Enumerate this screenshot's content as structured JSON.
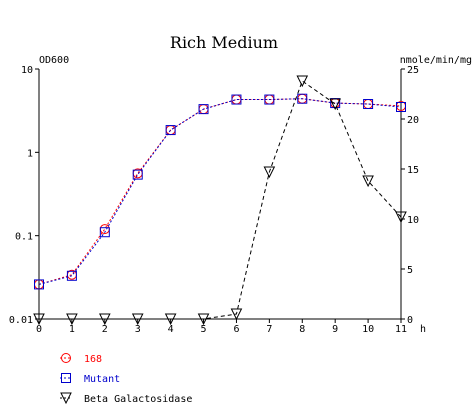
{
  "chart_data": {
    "type": "line",
    "title": "Rich Medium",
    "y_left_label": "OD600",
    "y_right_label": "nmole/min/mg",
    "x_unit_label": "h",
    "x": [
      0,
      1,
      2,
      3,
      4,
      5,
      6,
      7,
      8,
      9,
      10,
      11
    ],
    "x_tick_labels": [
      "0",
      "1",
      "2",
      "3",
      "4",
      "5",
      "6",
      "7",
      "8",
      "9",
      "10",
      "11"
    ],
    "xlim": [
      0,
      11
    ],
    "y_left": {
      "scale": "log",
      "range": [
        0.01,
        10
      ],
      "tick_values": [
        0.01,
        0.1,
        1,
        10
      ],
      "tick_labels": [
        "0.01",
        "0.1",
        "1",
        "10"
      ]
    },
    "y_right": {
      "scale": "linear",
      "range": [
        0,
        25
      ],
      "tick_values": [
        0,
        5,
        10,
        15,
        20,
        25
      ],
      "tick_labels": [
        "0",
        "5",
        "10",
        "15",
        "20",
        "25"
      ]
    },
    "series": [
      {
        "name": "168",
        "axis": "left",
        "color": "#ff0000",
        "line_style": "dotted",
        "marker": "circle",
        "values": [
          0.026,
          0.034,
          0.12,
          0.56,
          1.85,
          3.3,
          4.3,
          4.3,
          4.4,
          3.9,
          3.8,
          3.6
        ]
      },
      {
        "name": "Mutant",
        "axis": "left",
        "color": "#0000cc",
        "line_style": "dotted",
        "marker": "square",
        "values": [
          0.026,
          0.033,
          0.11,
          0.54,
          1.85,
          3.3,
          4.3,
          4.3,
          4.4,
          3.9,
          3.8,
          3.5
        ]
      },
      {
        "name": "Beta Galactosidase",
        "axis": "right",
        "color": "#000000",
        "line_style": "dashed",
        "marker": "triangle-down",
        "values": [
          0,
          0,
          0,
          0,
          0,
          0,
          0.5,
          14.7,
          23.8,
          21.5,
          13.8,
          10.2
        ]
      }
    ]
  }
}
